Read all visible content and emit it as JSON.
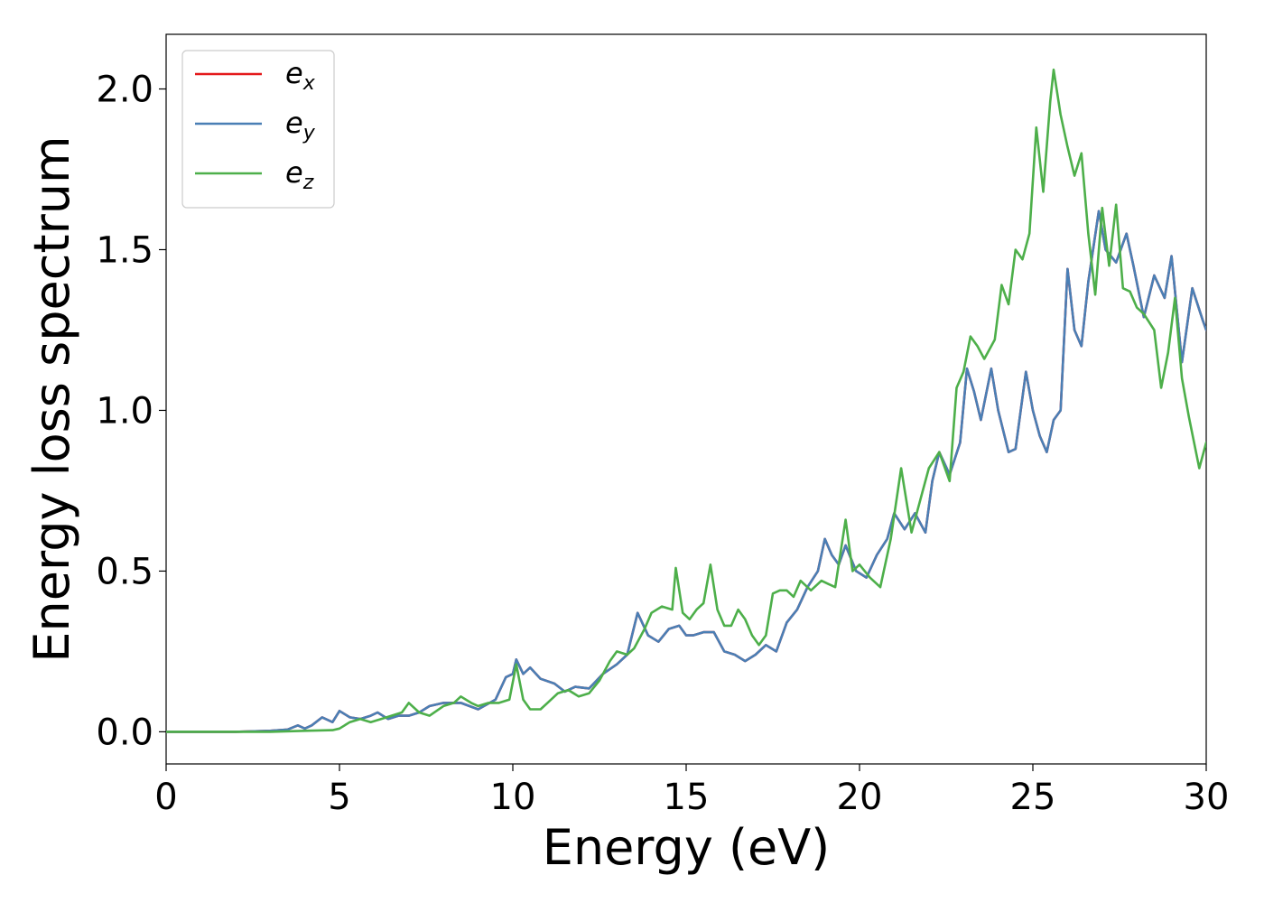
{
  "chart_data": {
    "type": "line",
    "xlabel": "Energy (eV)",
    "ylabel": "Energy loss spectrum",
    "xlim": [
      0,
      30
    ],
    "ylim": [
      -0.1,
      2.17
    ],
    "x_ticks": [
      0,
      5,
      10,
      15,
      20,
      25,
      30
    ],
    "x_tick_labels": [
      "0",
      "5",
      "10",
      "15",
      "20",
      "25",
      "30"
    ],
    "y_ticks": [
      0.0,
      0.5,
      1.0,
      1.5,
      2.0
    ],
    "y_tick_labels": [
      "0.0",
      "0.5",
      "1.0",
      "1.5",
      "2.0"
    ],
    "grid": false,
    "legend_position": "top-left",
    "series": [
      {
        "name": "e",
        "subscript": "x",
        "color": "#e41a1c",
        "x": [
          0,
          1,
          2,
          3,
          3.5,
          3.8,
          4.0,
          4.2,
          4.5,
          4.8,
          5.0,
          5.3,
          5.6,
          5.9,
          6.1,
          6.4,
          6.7,
          7.0,
          7.3,
          7.6,
          8.0,
          8.5,
          9.0,
          9.5,
          9.8,
          10.0,
          10.1,
          10.3,
          10.5,
          10.8,
          11.2,
          11.5,
          11.8,
          12.2,
          12.6,
          13.0,
          13.3,
          13.6,
          13.9,
          14.2,
          14.5,
          14.8,
          15.0,
          15.2,
          15.5,
          15.8,
          16.1,
          16.4,
          16.7,
          17.0,
          17.3,
          17.6,
          17.9,
          18.2,
          18.5,
          18.8,
          19.0,
          19.2,
          19.4,
          19.6,
          19.9,
          20.2,
          20.5,
          20.8,
          21.0,
          21.3,
          21.6,
          21.9,
          22.1,
          22.3,
          22.6,
          22.9,
          23.1,
          23.3,
          23.5,
          23.8,
          24.0,
          24.3,
          24.5,
          24.8,
          25.0,
          25.2,
          25.4,
          25.6,
          25.8,
          26.0,
          26.2,
          26.4,
          26.6,
          26.9,
          27.1,
          27.4,
          27.7,
          27.9,
          28.2,
          28.5,
          28.8,
          29.0,
          29.3,
          29.6,
          29.9,
          30.0
        ],
        "y": [
          0.0,
          0.0,
          0.0,
          0.003,
          0.007,
          0.02,
          0.01,
          0.02,
          0.045,
          0.03,
          0.065,
          0.045,
          0.04,
          0.05,
          0.06,
          0.04,
          0.05,
          0.05,
          0.06,
          0.08,
          0.09,
          0.09,
          0.07,
          0.1,
          0.17,
          0.18,
          0.225,
          0.18,
          0.2,
          0.165,
          0.15,
          0.125,
          0.14,
          0.135,
          0.18,
          0.21,
          0.24,
          0.37,
          0.3,
          0.28,
          0.32,
          0.33,
          0.3,
          0.3,
          0.31,
          0.31,
          0.25,
          0.24,
          0.22,
          0.24,
          0.27,
          0.25,
          0.34,
          0.38,
          0.45,
          0.5,
          0.6,
          0.55,
          0.52,
          0.58,
          0.5,
          0.48,
          0.55,
          0.6,
          0.68,
          0.63,
          0.68,
          0.62,
          0.78,
          0.87,
          0.8,
          0.9,
          1.13,
          1.06,
          0.97,
          1.13,
          1.0,
          0.87,
          0.88,
          1.12,
          1.0,
          0.92,
          0.87,
          0.97,
          1.0,
          1.44,
          1.25,
          1.2,
          1.4,
          1.62,
          1.5,
          1.46,
          1.55,
          1.45,
          1.29,
          1.42,
          1.35,
          1.48,
          1.15,
          1.38,
          1.28,
          1.25
        ]
      },
      {
        "name": "e",
        "subscript": "y",
        "color": "#4a7fb5",
        "x": [
          0,
          1,
          2,
          3,
          3.5,
          3.8,
          4.0,
          4.2,
          4.5,
          4.8,
          5.0,
          5.3,
          5.6,
          5.9,
          6.1,
          6.4,
          6.7,
          7.0,
          7.3,
          7.6,
          8.0,
          8.5,
          9.0,
          9.5,
          9.8,
          10.0,
          10.1,
          10.3,
          10.5,
          10.8,
          11.2,
          11.5,
          11.8,
          12.2,
          12.6,
          13.0,
          13.3,
          13.6,
          13.9,
          14.2,
          14.5,
          14.8,
          15.0,
          15.2,
          15.5,
          15.8,
          16.1,
          16.4,
          16.7,
          17.0,
          17.3,
          17.6,
          17.9,
          18.2,
          18.5,
          18.8,
          19.0,
          19.2,
          19.4,
          19.6,
          19.9,
          20.2,
          20.5,
          20.8,
          21.0,
          21.3,
          21.6,
          21.9,
          22.1,
          22.3,
          22.6,
          22.9,
          23.1,
          23.3,
          23.5,
          23.8,
          24.0,
          24.3,
          24.5,
          24.8,
          25.0,
          25.2,
          25.4,
          25.6,
          25.8,
          26.0,
          26.2,
          26.4,
          26.6,
          26.9,
          27.1,
          27.4,
          27.7,
          27.9,
          28.2,
          28.5,
          28.8,
          29.0,
          29.3,
          29.6,
          29.9,
          30.0
        ],
        "y": [
          0.0,
          0.0,
          0.0,
          0.003,
          0.007,
          0.02,
          0.01,
          0.02,
          0.045,
          0.03,
          0.065,
          0.045,
          0.04,
          0.05,
          0.06,
          0.04,
          0.05,
          0.05,
          0.06,
          0.08,
          0.09,
          0.09,
          0.07,
          0.1,
          0.17,
          0.18,
          0.225,
          0.18,
          0.2,
          0.165,
          0.15,
          0.125,
          0.14,
          0.135,
          0.18,
          0.21,
          0.24,
          0.37,
          0.3,
          0.28,
          0.32,
          0.33,
          0.3,
          0.3,
          0.31,
          0.31,
          0.25,
          0.24,
          0.22,
          0.24,
          0.27,
          0.25,
          0.34,
          0.38,
          0.45,
          0.5,
          0.6,
          0.55,
          0.52,
          0.58,
          0.5,
          0.48,
          0.55,
          0.6,
          0.68,
          0.63,
          0.68,
          0.62,
          0.78,
          0.87,
          0.8,
          0.9,
          1.13,
          1.06,
          0.97,
          1.13,
          1.0,
          0.87,
          0.88,
          1.12,
          1.0,
          0.92,
          0.87,
          0.97,
          1.0,
          1.44,
          1.25,
          1.2,
          1.4,
          1.62,
          1.5,
          1.46,
          1.55,
          1.45,
          1.29,
          1.42,
          1.35,
          1.48,
          1.15,
          1.38,
          1.28,
          1.25
        ]
      },
      {
        "name": "e",
        "subscript": "z",
        "color": "#4daf4a",
        "x": [
          0,
          1,
          2,
          3,
          4,
          4.8,
          5.0,
          5.3,
          5.6,
          5.9,
          6.2,
          6.5,
          6.8,
          7.0,
          7.3,
          7.6,
          8.0,
          8.3,
          8.5,
          8.8,
          9.0,
          9.3,
          9.6,
          9.9,
          10.1,
          10.3,
          10.5,
          10.8,
          11.0,
          11.3,
          11.6,
          11.9,
          12.2,
          12.5,
          12.8,
          13.0,
          13.3,
          13.5,
          13.8,
          14.0,
          14.3,
          14.6,
          14.7,
          14.9,
          15.1,
          15.3,
          15.5,
          15.7,
          15.9,
          16.1,
          16.3,
          16.5,
          16.7,
          16.9,
          17.1,
          17.3,
          17.5,
          17.7,
          17.9,
          18.1,
          18.3,
          18.6,
          18.9,
          19.1,
          19.3,
          19.6,
          19.8,
          20.0,
          20.3,
          20.6,
          20.9,
          21.2,
          21.5,
          21.8,
          22.0,
          22.3,
          22.6,
          22.8,
          23.0,
          23.2,
          23.4,
          23.6,
          23.9,
          24.1,
          24.3,
          24.5,
          24.7,
          24.9,
          25.1,
          25.3,
          25.5,
          25.6,
          25.8,
          26.0,
          26.2,
          26.4,
          26.6,
          26.8,
          27.0,
          27.2,
          27.4,
          27.6,
          27.8,
          28.0,
          28.2,
          28.5,
          28.7,
          28.9,
          29.1,
          29.3,
          29.5,
          29.8,
          30.0
        ],
        "y": [
          0.0,
          0.0,
          0.0,
          0.0,
          0.003,
          0.005,
          0.01,
          0.03,
          0.04,
          0.03,
          0.04,
          0.05,
          0.06,
          0.09,
          0.06,
          0.05,
          0.08,
          0.09,
          0.11,
          0.09,
          0.08,
          0.09,
          0.09,
          0.1,
          0.21,
          0.1,
          0.07,
          0.07,
          0.09,
          0.12,
          0.13,
          0.11,
          0.12,
          0.16,
          0.22,
          0.25,
          0.24,
          0.26,
          0.32,
          0.37,
          0.39,
          0.38,
          0.51,
          0.37,
          0.35,
          0.38,
          0.4,
          0.52,
          0.38,
          0.33,
          0.33,
          0.38,
          0.35,
          0.3,
          0.27,
          0.3,
          0.43,
          0.44,
          0.44,
          0.42,
          0.47,
          0.44,
          0.47,
          0.46,
          0.45,
          0.66,
          0.5,
          0.52,
          0.48,
          0.45,
          0.6,
          0.82,
          0.62,
          0.74,
          0.82,
          0.87,
          0.78,
          1.07,
          1.12,
          1.23,
          1.2,
          1.16,
          1.22,
          1.39,
          1.33,
          1.5,
          1.47,
          1.55,
          1.88,
          1.68,
          1.96,
          2.06,
          1.92,
          1.82,
          1.73,
          1.8,
          1.55,
          1.36,
          1.63,
          1.45,
          1.64,
          1.38,
          1.37,
          1.32,
          1.3,
          1.25,
          1.07,
          1.18,
          1.35,
          1.1,
          0.98,
          0.82,
          0.9
        ]
      }
    ]
  }
}
